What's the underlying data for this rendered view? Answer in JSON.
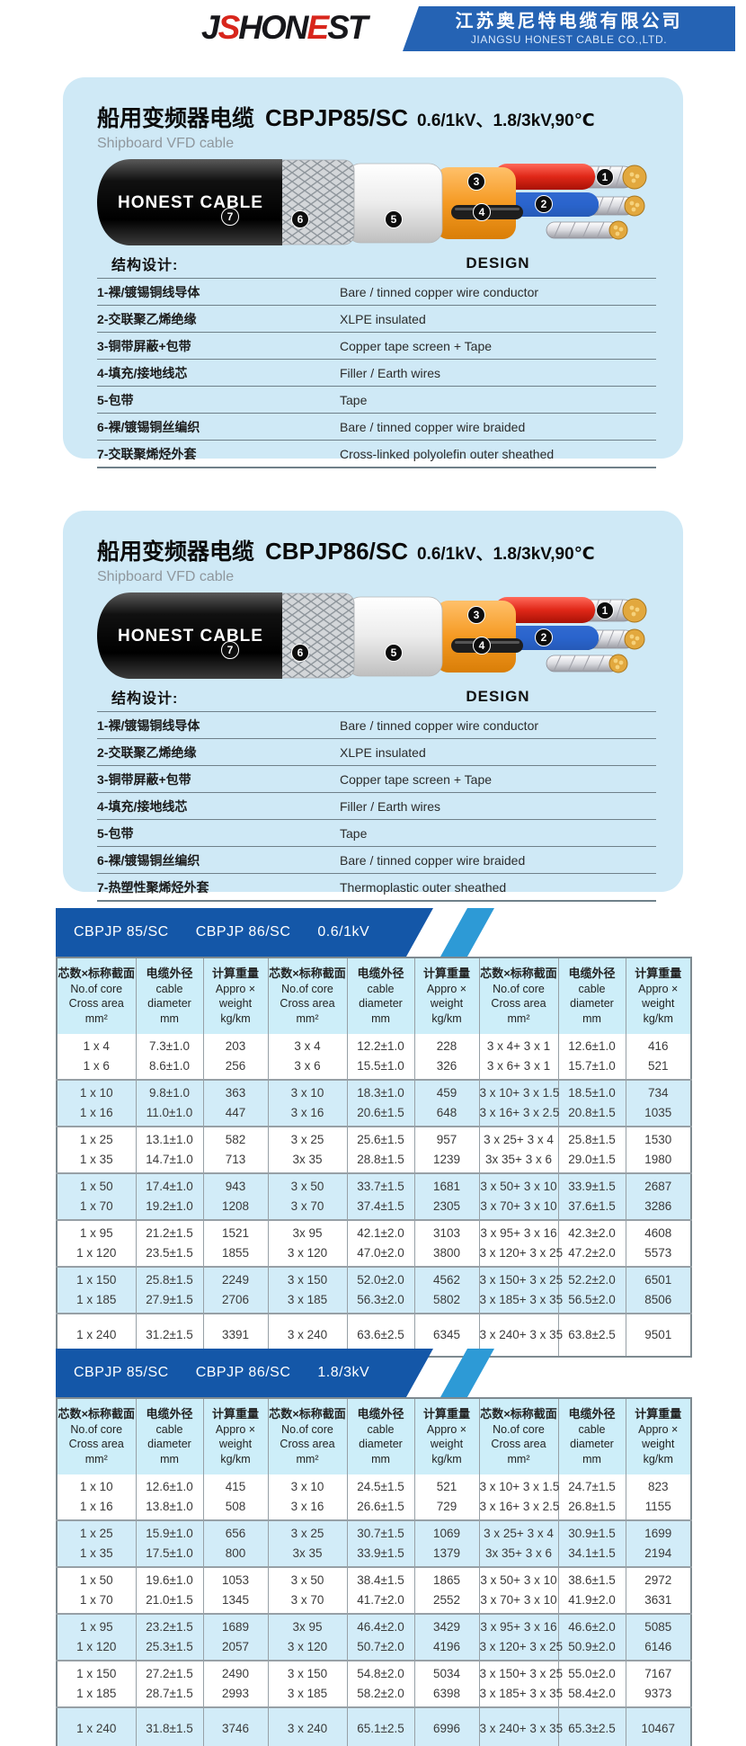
{
  "header": {
    "logo_text": "JSHONEST",
    "logo_red_indices": [
      1,
      5
    ],
    "company_cn": "江苏奥尼特电缆有限公司",
    "company_en": "JIANGSU HONEST CABLE CO.,LTD."
  },
  "colors": {
    "header_band": "#2563b4",
    "logo_red": "#d8261c",
    "card_bg": "#cfe9f6",
    "spec_band_dark": "#1457a8",
    "spec_band_light": "#2d9ad6",
    "table_header_bg": "#cdeef9",
    "table_stripe_bg": "#d2ecf8"
  },
  "products": [
    {
      "name_cn": "船用变频器电缆",
      "model": "CBPJP85/SC",
      "ratings": "0.6/1kV、1.8/3kV,90℃",
      "subtitle": "Shipboard VFD cable",
      "cable_label": "HONEST CABLE",
      "design_title_cn": "结构设计:",
      "design_title_en": "DESIGN",
      "design_rows": [
        {
          "cn": "1-裸/镀锡铜线导体",
          "en": "Bare / tinned copper wire conductor"
        },
        {
          "cn": "2-交联聚乙烯绝缘",
          "en": "XLPE insulated"
        },
        {
          "cn": "3-铜带屏蔽+包带",
          "en": "Copper tape screen + Tape"
        },
        {
          "cn": "4-填充/接地线芯",
          "en": "Filler / Earth wires"
        },
        {
          "cn": "5-包带",
          "en": "Tape"
        },
        {
          "cn": "6-裸/镀锡铜丝编织",
          "en": "Bare / tinned copper wire braided"
        },
        {
          "cn": "7-交联聚烯烃外套",
          "en": "Cross-linked  polyolefin  outer  sheathed"
        }
      ]
    },
    {
      "name_cn": "船用变频器电缆",
      "model": "CBPJP86/SC",
      "ratings": "0.6/1kV、1.8/3kV,90℃",
      "subtitle": "Shipboard VFD cable",
      "cable_label": "HONEST CABLE",
      "design_title_cn": "结构设计:",
      "design_title_en": "DESIGN",
      "design_rows": [
        {
          "cn": "1-裸/镀锡铜线导体",
          "en": "Bare / tinned copper wire conductor"
        },
        {
          "cn": "2-交联聚乙烯绝缘",
          "en": "XLPE insulated"
        },
        {
          "cn": "3-铜带屏蔽+包带",
          "en": "Copper tape screen + Tape"
        },
        {
          "cn": "4-填充/接地线芯",
          "en": "Filler / Earth wires"
        },
        {
          "cn": "5-包带",
          "en": "Tape"
        },
        {
          "cn": "6-裸/镀锡铜丝编织",
          "en": "Bare / tinned copper wire braided"
        },
        {
          "cn": "7-热塑性聚烯烃外套",
          "en": "Thermoplastic outer sheathed"
        }
      ]
    }
  ],
  "spec_tables": [
    {
      "band": [
        "CBPJP 85/SC",
        "CBPJP 86/SC",
        "0.6/1kV"
      ],
      "column_set": [
        {
          "lines": [
            "芯数×标称截面",
            "No.of core",
            "Cross area",
            "mm²"
          ]
        },
        {
          "lines": [
            "电缆外径",
            "cable",
            "diameter",
            "mm"
          ]
        },
        {
          "lines": [
            "计算重量",
            "Appro ×",
            "weight",
            "kg/km"
          ]
        }
      ],
      "groups": [
        {
          "rows": [
            [
              "1 x 4",
              "7.3±1.0",
              "203",
              "3 x 4",
              "12.2±1.0",
              "228",
              "3 x 4+ 3 x 1",
              "12.6±1.0",
              "416"
            ],
            [
              "1 x 6",
              "8.6±1.0",
              "256",
              "3 x 6",
              "15.5±1.0",
              "326",
              "3 x 6+ 3 x 1",
              "15.7±1.0",
              "521"
            ]
          ]
        },
        {
          "rows": [
            [
              "1 x 10",
              "9.8±1.0",
              "363",
              "3 x 10",
              "18.3±1.0",
              "459",
              "3 x 10+ 3 x 1.5",
              "18.5±1.0",
              "734"
            ],
            [
              "1 x 16",
              "11.0±1.0",
              "447",
              "3 x 16",
              "20.6±1.5",
              "648",
              "3 x 16+ 3 x 2.5",
              "20.8±1.5",
              "1035"
            ]
          ]
        },
        {
          "rows": [
            [
              "1 x 25",
              "13.1±1.0",
              "582",
              "3 x 25",
              "25.6±1.5",
              "957",
              "3 x 25+ 3 x 4",
              "25.8±1.5",
              "1530"
            ],
            [
              "1 x 35",
              "14.7±1.0",
              "713",
              "3x 35",
              "28.8±1.5",
              "1239",
              "3x 35+ 3 x 6",
              "29.0±1.5",
              "1980"
            ]
          ]
        },
        {
          "rows": [
            [
              "1 x 50",
              "17.4±1.0",
              "943",
              "3 x 50",
              "33.7±1.5",
              "1681",
              "3 x 50+ 3 x 10",
              "33.9±1.5",
              "2687"
            ],
            [
              "1 x 70",
              "19.2±1.0",
              "1208",
              "3 x 70",
              "37.4±1.5",
              "2305",
              "3 x 70+ 3 x 10",
              "37.6±1.5",
              "3286"
            ]
          ]
        },
        {
          "rows": [
            [
              "1 x 95",
              "21.2±1.5",
              "1521",
              "3x 95",
              "42.1±2.0",
              "3103",
              "3 x 95+ 3 x 16",
              "42.3±2.0",
              "4608"
            ],
            [
              "1 x 120",
              "23.5±1.5",
              "1855",
              "3 x 120",
              "47.0±2.0",
              "3800",
              "3 x 120+ 3 x 25",
              "47.2±2.0",
              "5573"
            ]
          ]
        },
        {
          "rows": [
            [
              "1 x 150",
              "25.8±1.5",
              "2249",
              "3 x 150",
              "52.0±2.0",
              "4562",
              "3 x 150+ 3 x 25",
              "52.2±2.0",
              "6501"
            ],
            [
              "1 x 185",
              "27.9±1.5",
              "2706",
              "3 x 185",
              "56.3±2.0",
              "5802",
              "3 x 185+ 3 x 35",
              "56.5±2.0",
              "8506"
            ]
          ]
        },
        {
          "rows": [
            [
              "1 x 240",
              "31.2±1.5",
              "3391",
              "3 x 240",
              "63.6±2.5",
              "6345",
              "3 x 240+ 3 x 35",
              "63.8±2.5",
              "9501"
            ]
          ]
        }
      ]
    },
    {
      "band": [
        "CBPJP 85/SC",
        "CBPJP 86/SC",
        "1.8/3kV"
      ],
      "column_set": [
        {
          "lines": [
            "芯数×标称截面",
            "No.of core",
            "Cross area",
            "mm²"
          ]
        },
        {
          "lines": [
            "电缆外径",
            "cable",
            "diameter",
            "mm"
          ]
        },
        {
          "lines": [
            "计算重量",
            "Appro ×",
            "weight",
            "kg/km"
          ]
        }
      ],
      "groups": [
        {
          "rows": [
            [
              "1 x 10",
              "12.6±1.0",
              "415",
              "3 x 10",
              "24.5±1.5",
              "521",
              "3 x 10+ 3 x 1.5",
              "24.7±1.5",
              "823"
            ],
            [
              "1 x 16",
              "13.8±1.0",
              "508",
              "3 x 16",
              "26.6±1.5",
              "729",
              "3 x 16+ 3 x 2.5",
              "26.8±1.5",
              "1155"
            ]
          ]
        },
        {
          "rows": [
            [
              "1 x 25",
              "15.9±1.0",
              "656",
              "3 x 25",
              "30.7±1.5",
              "1069",
              "3 x 25+ 3 x 4",
              "30.9±1.5",
              "1699"
            ],
            [
              "1 x 35",
              "17.5±1.0",
              "800",
              "3x 35",
              "33.9±1.5",
              "1379",
              "3x 35+ 3 x 6",
              "34.1±1.5",
              "2194"
            ]
          ]
        },
        {
          "rows": [
            [
              "1 x 50",
              "19.6±1.0",
              "1053",
              "3 x 50",
              "38.4±1.5",
              "1865",
              "3 x 50+ 3 x 10",
              "38.6±1.5",
              "2972"
            ],
            [
              "1 x 70",
              "21.0±1.5",
              "1345",
              "3 x 70",
              "41.7±2.0",
              "2552",
              "3 x 70+ 3 x 10",
              "41.9±2.0",
              "3631"
            ]
          ]
        },
        {
          "rows": [
            [
              "1 x 95",
              "23.2±1.5",
              "1689",
              "3x 95",
              "46.4±2.0",
              "3429",
              "3 x 95+ 3 x 16",
              "46.6±2.0",
              "5085"
            ],
            [
              "1 x 120",
              "25.3±1.5",
              "2057",
              "3 x 120",
              "50.7±2.0",
              "4196",
              "3 x 120+ 3 x 25",
              "50.9±2.0",
              "6146"
            ]
          ]
        },
        {
          "rows": [
            [
              "1 x 150",
              "27.2±1.5",
              "2490",
              "3 x 150",
              "54.8±2.0",
              "5034",
              "3 x 150+ 3 x 25",
              "55.0±2.0",
              "7167"
            ],
            [
              "1 x 185",
              "28.7±1.5",
              "2993",
              "3 x 185",
              "58.2±2.0",
              "6398",
              "3 x 185+ 3 x 35",
              "58.4±2.0",
              "9373"
            ]
          ]
        },
        {
          "rows": [
            [
              "1 x 240",
              "31.8±1.5",
              "3746",
              "3 x 240",
              "65.1±2.5",
              "6996",
              "3 x 240+ 3 x 35",
              "65.3±2.5",
              "10467"
            ]
          ]
        }
      ]
    }
  ]
}
